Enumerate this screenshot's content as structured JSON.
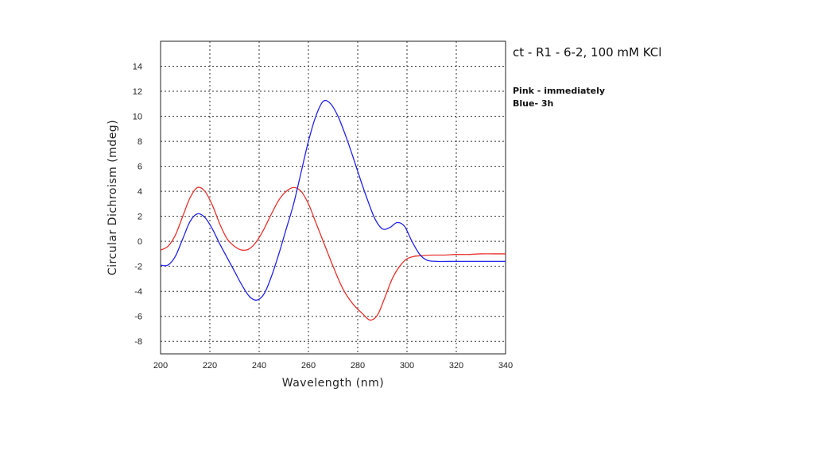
{
  "annotation": {
    "title": "ct - R1 - 6-2, 100 mM KCl",
    "line1": "Pink - immediately",
    "line2": "Blue- 3h"
  },
  "chart_data": {
    "type": "line",
    "title": "",
    "xlabel": "Wavelength (nm)",
    "ylabel": "Circular Dichroism (mdeg)",
    "xlim": [
      200,
      340
    ],
    "ylim": [
      -9,
      16
    ],
    "xticks": [
      200,
      220,
      240,
      260,
      280,
      300,
      320,
      340
    ],
    "yticks": [
      -8,
      -6,
      -4,
      -2,
      0,
      2,
      4,
      6,
      8,
      10,
      12,
      14
    ],
    "grid": true,
    "legend": "none",
    "series": [
      {
        "color": "#e8322e",
        "x": [
          200,
          203,
          206,
          209,
          212,
          215,
          218,
          221,
          224,
          227,
          230,
          233,
          236,
          239,
          242,
          245,
          248,
          251,
          254,
          257,
          260,
          263,
          266,
          270,
          274,
          278,
          282,
          285,
          288,
          291,
          294,
          297,
          300,
          303,
          306,
          310,
          315,
          320,
          325,
          330,
          335,
          340
        ],
        "y": [
          -0.7,
          -0.4,
          0.5,
          2.0,
          3.5,
          4.3,
          4.0,
          2.9,
          1.4,
          0.2,
          -0.4,
          -0.7,
          -0.6,
          0.0,
          1.0,
          2.2,
          3.3,
          4.0,
          4.3,
          4.0,
          3.0,
          1.5,
          0.0,
          -2.0,
          -3.8,
          -5.0,
          -5.8,
          -6.3,
          -5.9,
          -4.5,
          -3.0,
          -2.0,
          -1.4,
          -1.2,
          -1.15,
          -1.1,
          -1.1,
          -1.05,
          -1.05,
          -1.0,
          -1.0,
          -1.0
        ]
      },
      {
        "color": "#2323e8",
        "x": [
          200,
          203,
          206,
          209,
          212,
          215,
          218,
          221,
          224,
          227,
          230,
          233,
          236,
          239,
          242,
          245,
          248,
          251,
          254,
          257,
          260,
          263,
          266,
          269,
          272,
          275,
          278,
          281,
          284,
          287,
          290,
          293,
          296,
          299,
          302,
          305,
          308,
          312,
          320,
          330,
          340
        ],
        "y": [
          -1.9,
          -1.9,
          -1.2,
          0.2,
          1.6,
          2.2,
          1.9,
          1.0,
          -0.2,
          -1.3,
          -2.4,
          -3.5,
          -4.4,
          -4.7,
          -4.2,
          -2.8,
          -1.0,
          1.0,
          3.0,
          5.5,
          8.0,
          10.0,
          11.2,
          11.0,
          10.0,
          8.5,
          6.8,
          5.0,
          3.3,
          1.8,
          1.0,
          1.1,
          1.5,
          1.2,
          0.0,
          -1.0,
          -1.5,
          -1.6,
          -1.6,
          -1.6,
          -1.6
        ]
      }
    ]
  }
}
